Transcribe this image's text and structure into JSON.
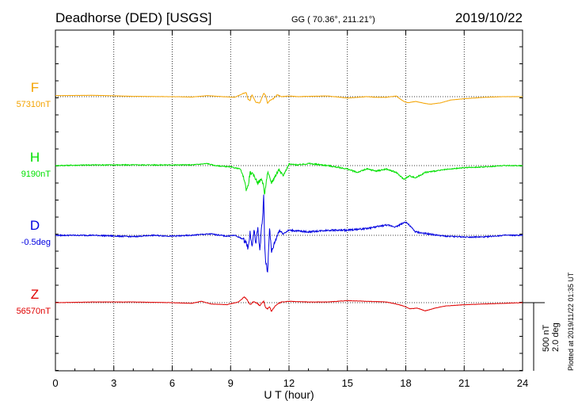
{
  "header": {
    "station": "Deadhorse (DED)  [USGS]",
    "coords": "GG ( 70.36°, 211.21°)",
    "date": "2019/10/22"
  },
  "footer": {
    "plotted": "Plotted at 2019/11/22 01:35 UT"
  },
  "chart_data": {
    "type": "line",
    "xlabel": "U T (hour)",
    "xlim": [
      0,
      24
    ],
    "xticks": [
      0,
      3,
      6,
      9,
      12,
      15,
      18,
      21,
      24
    ],
    "grid": true,
    "scale_bar": {
      "nT": "500 nT",
      "deg": "2.0 deg",
      "range_hours": [
        24,
        24
      ]
    },
    "series": [
      {
        "name": "F",
        "baseline_label": "57310nT",
        "color": "#f4a300",
        "x": [
          0,
          2,
          4,
          6,
          7,
          7.8,
          8.6,
          9.2,
          9.6,
          9.8,
          9.9,
          10.0,
          10.1,
          10.3,
          10.5,
          10.7,
          10.8,
          10.9,
          11.0,
          11.2,
          11.4,
          11.6,
          12,
          12.5,
          13,
          14,
          15,
          16,
          16.5,
          17,
          17.5,
          17.9,
          18.1,
          18.5,
          19,
          19.3,
          19.8,
          20.3,
          21,
          22,
          23,
          24
        ],
        "y": [
          15,
          20,
          5,
          0,
          -5,
          15,
          0,
          -10,
          40,
          60,
          -40,
          -60,
          30,
          -80,
          -90,
          50,
          20,
          -100,
          -60,
          -30,
          30,
          0,
          10,
          0,
          5,
          10,
          -20,
          0,
          -10,
          -10,
          10,
          -70,
          -90,
          -70,
          -100,
          -110,
          -90,
          -50,
          -30,
          -10,
          0,
          0
        ]
      },
      {
        "name": "H",
        "baseline_label": "9190nT",
        "color": "#00e000",
        "x": [
          0,
          2,
          4,
          6,
          7,
          7.8,
          8.2,
          9.0,
          9.5,
          9.7,
          9.8,
          9.9,
          10.0,
          10.2,
          10.4,
          10.6,
          10.7,
          10.75,
          10.8,
          10.9,
          11.1,
          11.3,
          11.5,
          11.7,
          12,
          12.5,
          13,
          14,
          15,
          15.5,
          16,
          16.5,
          17,
          17.5,
          17.9,
          18.2,
          18.5,
          19,
          19.5,
          20,
          21,
          22,
          23,
          24
        ],
        "y": [
          0,
          10,
          10,
          10,
          10,
          30,
          0,
          -20,
          -50,
          -200,
          -350,
          -300,
          -100,
          -150,
          -250,
          -200,
          -300,
          -450,
          -300,
          -100,
          -250,
          -150,
          -50,
          -150,
          20,
          10,
          30,
          0,
          -50,
          -100,
          -50,
          -80,
          -50,
          -100,
          -200,
          -150,
          -180,
          -100,
          -80,
          -60,
          -30,
          -20,
          0,
          0
        ]
      },
      {
        "name": "D",
        "baseline_label": "-0.5deg",
        "color": "#0000e0",
        "x": [
          0,
          2,
          4,
          5,
          6,
          7,
          7.5,
          8,
          8.8,
          9.2,
          9.6,
          9.8,
          9.9,
          10.0,
          10.1,
          10.2,
          10.3,
          10.4,
          10.5,
          10.6,
          10.65,
          10.7,
          10.75,
          10.8,
          10.9,
          11.0,
          11.1,
          11.3,
          11.5,
          11.7,
          12,
          13,
          14,
          15,
          16,
          17,
          17.5,
          18,
          18.5,
          19,
          20,
          21,
          22,
          23,
          24
        ],
        "y": [
          0,
          0,
          -0.08,
          0,
          -0.05,
          0,
          0.05,
          0.08,
          -0.05,
          0,
          -0.2,
          -0.4,
          -0.8,
          0.2,
          -0.7,
          0.3,
          -0.5,
          0.5,
          -0.9,
          0.6,
          1.0,
          2.4,
          -0.6,
          -1.5,
          -2.2,
          0.5,
          -1.0,
          -0.3,
          0.3,
          0.1,
          0.3,
          0.2,
          0.3,
          0.3,
          0.4,
          0.6,
          0.5,
          0.8,
          0.2,
          0.1,
          -0.05,
          -0.1,
          -0.1,
          0,
          0
        ]
      },
      {
        "name": "Z",
        "baseline_label": "56570nT",
        "color": "#e00000",
        "x": [
          0,
          2,
          4,
          6,
          7,
          7.5,
          8,
          8.8,
          9.4,
          9.7,
          9.8,
          9.9,
          10.0,
          10.2,
          10.5,
          10.7,
          10.8,
          10.9,
          11.0,
          11.1,
          11.3,
          11.6,
          12,
          13,
          14,
          15,
          16,
          17,
          17.5,
          17.9,
          18.2,
          18.6,
          19,
          19.5,
          20,
          21,
          22,
          23,
          24
        ],
        "y": [
          0,
          10,
          10,
          0,
          -10,
          20,
          -20,
          -30,
          10,
          80,
          60,
          20,
          -30,
          20,
          -40,
          20,
          -70,
          -90,
          -60,
          -130,
          -40,
          10,
          20,
          10,
          10,
          30,
          20,
          10,
          -20,
          -50,
          -90,
          -80,
          -120,
          -80,
          -50,
          -30,
          -20,
          -10,
          0
        ]
      }
    ]
  }
}
